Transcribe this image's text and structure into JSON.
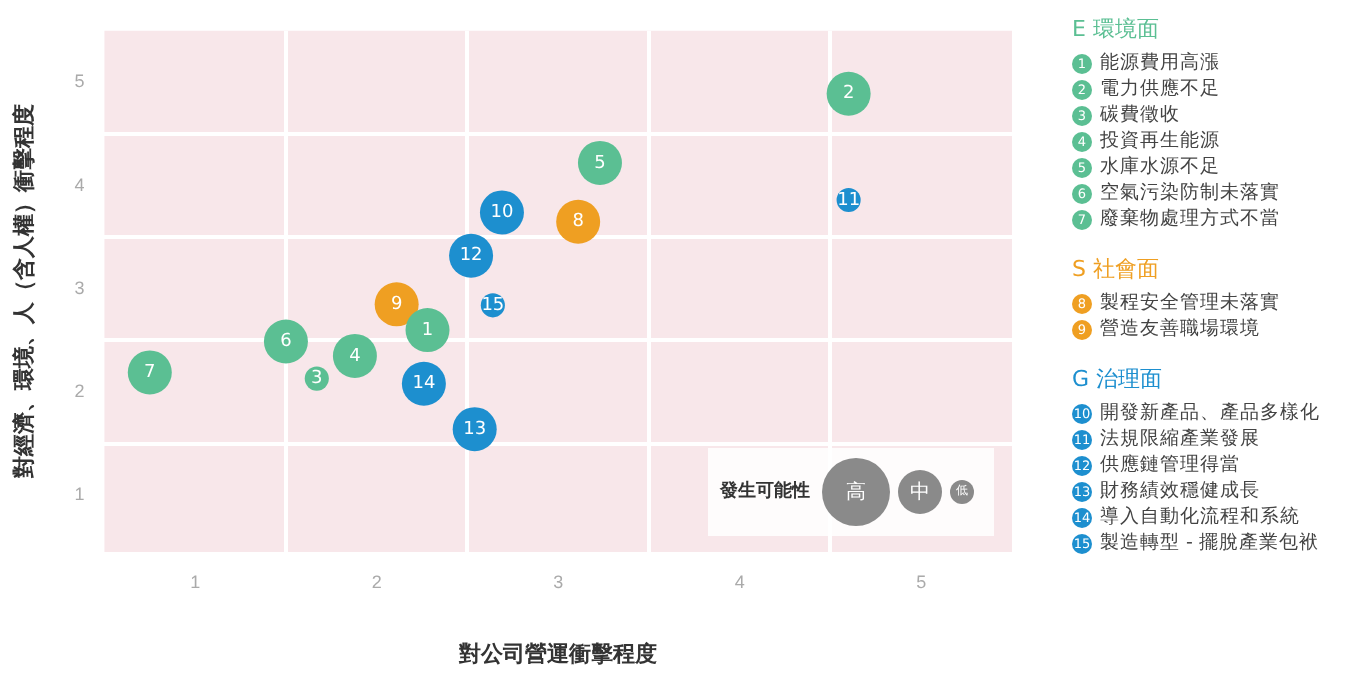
{
  "chart_data": {
    "type": "bubble",
    "xlabel": "對公司營運衝擊程度",
    "ylabel": "對經濟、環境、人（含人權）衝擊程度",
    "xlim": [
      0.5,
      5.5
    ],
    "ylim": [
      0.45,
      5.5
    ],
    "xticks": [
      1,
      {
        "value": 1.5,
        "label": null
      },
      2,
      {
        "value": 2.5,
        "label": null
      },
      3,
      {
        "value": 3.5,
        "label": null
      },
      4,
      {
        "value": 4.5,
        "label": null
      },
      5
    ],
    "yticks": [
      1,
      {
        "value": 1.5,
        "label": null
      },
      2,
      {
        "value": 2.5,
        "label": null
      },
      3,
      {
        "value": 3.5,
        "label": null
      },
      4,
      {
        "value": 4.5,
        "label": null
      },
      5
    ],
    "grid": true,
    "legend": "right",
    "legend_title": "發生可能性",
    "size_legend": [
      {
        "value": 2.4,
        "label": "高"
      },
      {
        "value": 1,
        "label": "中"
      },
      {
        "value": 0.3,
        "label": "低"
      }
    ],
    "series": [
      {
        "name": "E 環境面",
        "color": "#5bbf93",
        "x": [
          2.28,
          4.6,
          1.67,
          1.88,
          3.23,
          1.5,
          0.75
        ],
        "values": [
          2.6,
          4.89,
          2.13,
          2.35,
          4.22,
          2.49,
          2.19
        ],
        "sizes": [
          1,
          1,
          0.3,
          1,
          1,
          1,
          1
        ]
      },
      {
        "name": "S 社會面",
        "color": "#ef9f22",
        "x": [
          3.11,
          2.11
        ],
        "values": [
          3.65,
          2.85
        ],
        "sizes": [
          1,
          1
        ]
      },
      {
        "name": "G 治理面",
        "color": "#1d8fcf",
        "x": [
          2.69,
          4.6,
          2.52,
          2.54,
          2.26,
          2.64
        ],
        "values": [
          3.74,
          3.86,
          3.32,
          1.64,
          2.08,
          2.84
        ],
        "sizes": [
          1,
          0.3,
          1,
          1,
          1,
          0.3
        ]
      }
    ],
    "annotations": [
      {
        "text": "1",
        "x": 2.28,
        "y": 2.6
      },
      {
        "text": "2",
        "x": 4.6,
        "y": 4.89
      },
      {
        "text": "3",
        "x": 1.67,
        "y": 2.13
      },
      {
        "text": "4",
        "x": 1.88,
        "y": 2.35
      },
      {
        "text": "5",
        "x": 3.23,
        "y": 4.22
      },
      {
        "text": "6",
        "x": 1.5,
        "y": 2.49
      },
      {
        "text": "7",
        "x": 0.75,
        "y": 2.19
      },
      {
        "text": "8",
        "x": 3.11,
        "y": 3.65
      },
      {
        "text": "9",
        "x": 2.11,
        "y": 2.85
      },
      {
        "text": "10",
        "x": 2.69,
        "y": 3.74
      },
      {
        "text": "11",
        "x": 4.6,
        "y": 3.86
      },
      {
        "text": "12",
        "x": 2.52,
        "y": 3.32
      },
      {
        "text": "13",
        "x": 2.54,
        "y": 1.64
      },
      {
        "text": "14",
        "x": 2.26,
        "y": 2.08
      },
      {
        "text": "15",
        "x": 2.64,
        "y": 2.84
      },
      "能源費用高漲",
      "電力供應不足",
      "碳費徵收",
      "投資再生能源",
      "水庫水源不足",
      "空氣污染防制未落實",
      "廢棄物處理方式不當",
      "製程安全管理未落實",
      "營造友善職場環境",
      "開發新產品、產品多樣化",
      "法規限縮產業發展",
      "供應鏈管理得當",
      "財務績效穩健成長",
      "導入自動化流程和系統",
      "製造轉型 - 擺脫產業包袱"
    ]
  }
}
